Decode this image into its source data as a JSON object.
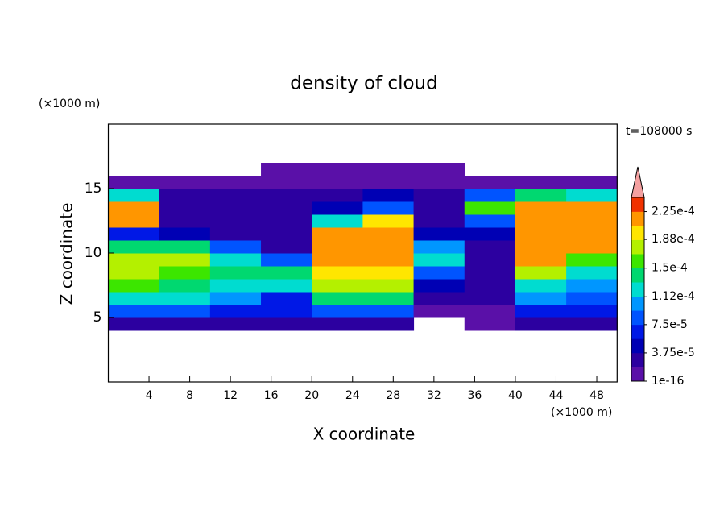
{
  "chart_data": {
    "type": "contour",
    "title": "density of cloud",
    "time_label": "t=108000 s",
    "x_label": "X coordinate",
    "y_label": "Z coordinate",
    "x_unit": "(×1000 m)",
    "y_unit": "(×1000 m)",
    "xlim": [
      0,
      50
    ],
    "xticks": [
      4,
      8,
      12,
      16,
      20,
      24,
      28,
      32,
      36,
      40,
      44,
      48
    ],
    "ylim": [
      0,
      20
    ],
    "yticks": [
      5,
      10,
      15
    ],
    "field": {
      "x": [
        2.5,
        7.5,
        12.5,
        17.5,
        22.5,
        27.5,
        32.5,
        37.5,
        42.5,
        47.5
      ],
      "y": [
        4.5,
        5.5,
        6.5,
        7.5,
        8.5,
        9.5,
        10.5,
        11.5,
        12.5,
        13.5,
        14.5,
        15.5,
        16.5
      ],
      "values": [
        [
          2e-05,
          2e-05,
          2e-05,
          2e-05,
          2e-05,
          2e-05,
          null,
          1e-05,
          2e-05,
          3e-05
        ],
        [
          9e-05,
          8e-05,
          7e-05,
          6e-05,
          9e-05,
          9e-05,
          1e-05,
          1e-05,
          6e-05,
          7e-05
        ],
        [
          0.00013,
          0.00012,
          0.00011,
          6e-05,
          0.00014,
          0.00015,
          3e-05,
          2e-05,
          0.0001,
          8e-05
        ],
        [
          0.00016,
          0.00015,
          0.00013,
          0.00012,
          0.00017,
          0.00018,
          5e-05,
          3e-05,
          0.00013,
          0.00011
        ],
        [
          0.00017,
          0.00016,
          0.00015,
          0.00014,
          0.00019,
          0.0002,
          8e-05,
          3e-05,
          0.00018,
          0.00013
        ],
        [
          0.00017,
          0.00017,
          0.00013,
          9e-05,
          0.00021,
          0.000215,
          0.00012,
          2e-05,
          0.00021,
          0.00016
        ],
        [
          0.00014,
          0.00015,
          9e-05,
          3e-05,
          0.000215,
          0.00022,
          0.00011,
          2e-05,
          0.00022,
          0.00021
        ],
        [
          7e-05,
          4e-05,
          3e-05,
          2e-05,
          0.00021,
          0.00022,
          4e-05,
          4e-05,
          0.00022,
          0.00022
        ],
        [
          0.00022,
          3e-05,
          2e-05,
          2e-05,
          0.00012,
          0.00019,
          3e-05,
          8e-05,
          0.00022,
          0.00022
        ],
        [
          0.00022,
          3e-05,
          2e-05,
          2e-05,
          5e-05,
          9e-05,
          3e-05,
          0.00016,
          0.00022,
          0.00021
        ],
        [
          0.00012,
          2e-05,
          2e-05,
          2e-05,
          3e-05,
          4e-05,
          2e-05,
          9e-05,
          0.00015,
          0.00012
        ],
        [
          1e-05,
          1e-05,
          1e-05,
          1e-05,
          1e-05,
          1e-05,
          1e-05,
          1e-05,
          1e-05,
          1e-05
        ],
        [
          null,
          null,
          null,
          1e-05,
          1e-05,
          1e-05,
          1e-05,
          null,
          null,
          null
        ]
      ]
    },
    "clim": [
      1e-16,
      0.00024375
    ],
    "cticks": [
      {
        "value": 1e-16,
        "label": "1e-16"
      },
      {
        "value": 3.75e-05,
        "label": "3.75e-5"
      },
      {
        "value": 7.5e-05,
        "label": "7.5e-5"
      },
      {
        "value": 0.000112,
        "label": "1.12e-4"
      },
      {
        "value": 0.00015,
        "label": "1.5e-4"
      },
      {
        "value": 0.000188,
        "label": "1.88e-4"
      },
      {
        "value": 0.000225,
        "label": "2.25e-4"
      }
    ],
    "colors": [
      "#5a10a8",
      "#2c00a0",
      "#0000b4",
      "#0018e6",
      "#0054ff",
      "#0096ff",
      "#00dcd0",
      "#00d870",
      "#3ce600",
      "#b4f000",
      "#ffe600",
      "#ff9600",
      "#f03200"
    ],
    "extend_color": "#f4a0a0"
  }
}
